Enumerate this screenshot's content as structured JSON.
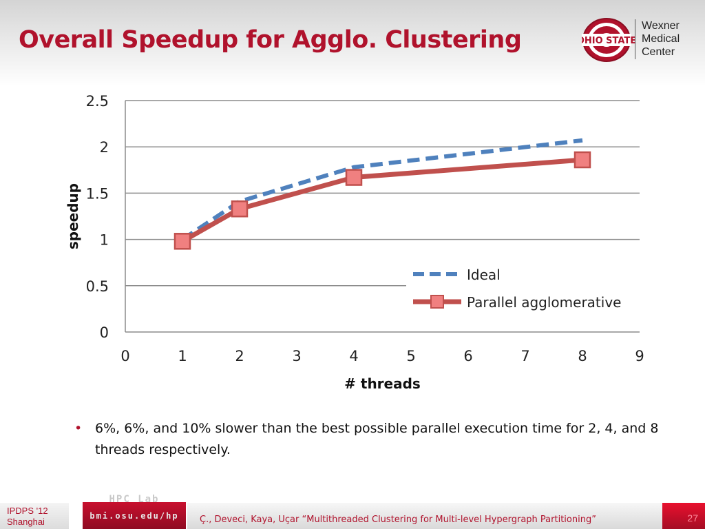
{
  "slide": {
    "title": "Overall Speedup for Agglo. Clustering",
    "bullet": "6%, 6%, and 10% slower than the best possible parallel execution time for 2, 4, and 8 threads respectively."
  },
  "logo": {
    "wordmark": "OHIO STATE",
    "lines": [
      "Wexner",
      "Medical",
      "Center"
    ]
  },
  "footer": {
    "conference": "IPDPS '12",
    "location": "Shanghai",
    "lab_name": "HPC Lab",
    "lab_url": "bmi.osu.edu/hp",
    "citation": "Ç., Deveci, Kaya, Uçar “Multithreaded Clustering for Multi-level Hypergraph Partitioning”",
    "page_number": "27"
  },
  "colors": {
    "title_red": "#b0122c",
    "ideal_blue": "#4f81bd",
    "parallel_red": "#c0504d",
    "marker_fill": "#f08080"
  },
  "chart_data": {
    "type": "line",
    "xlabel": "# threads",
    "ylabel": "speedup",
    "xlim": [
      0,
      9
    ],
    "ylim": [
      0,
      2.5
    ],
    "x_ticks": [
      0,
      1,
      2,
      3,
      4,
      5,
      6,
      7,
      8,
      9
    ],
    "y_ticks": [
      0,
      0.5,
      1,
      1.5,
      2,
      2.5
    ],
    "y_tick_labels": [
      "0",
      "0.5",
      "1",
      "1.5",
      "2",
      "2.5"
    ],
    "grid": "horizontal",
    "legend_position": "bottom-right",
    "series": [
      {
        "name": "Ideal",
        "style": "dashed",
        "color": "#4f81bd",
        "x": [
          1,
          2,
          4,
          8
        ],
        "y": [
          1,
          1.41,
          1.78,
          2.07
        ]
      },
      {
        "name": "Parallel agglomerative",
        "style": "solid-square-markers",
        "color": "#c0504d",
        "x": [
          1,
          2,
          4,
          8
        ],
        "y": [
          0.98,
          1.33,
          1.67,
          1.86
        ]
      }
    ]
  }
}
